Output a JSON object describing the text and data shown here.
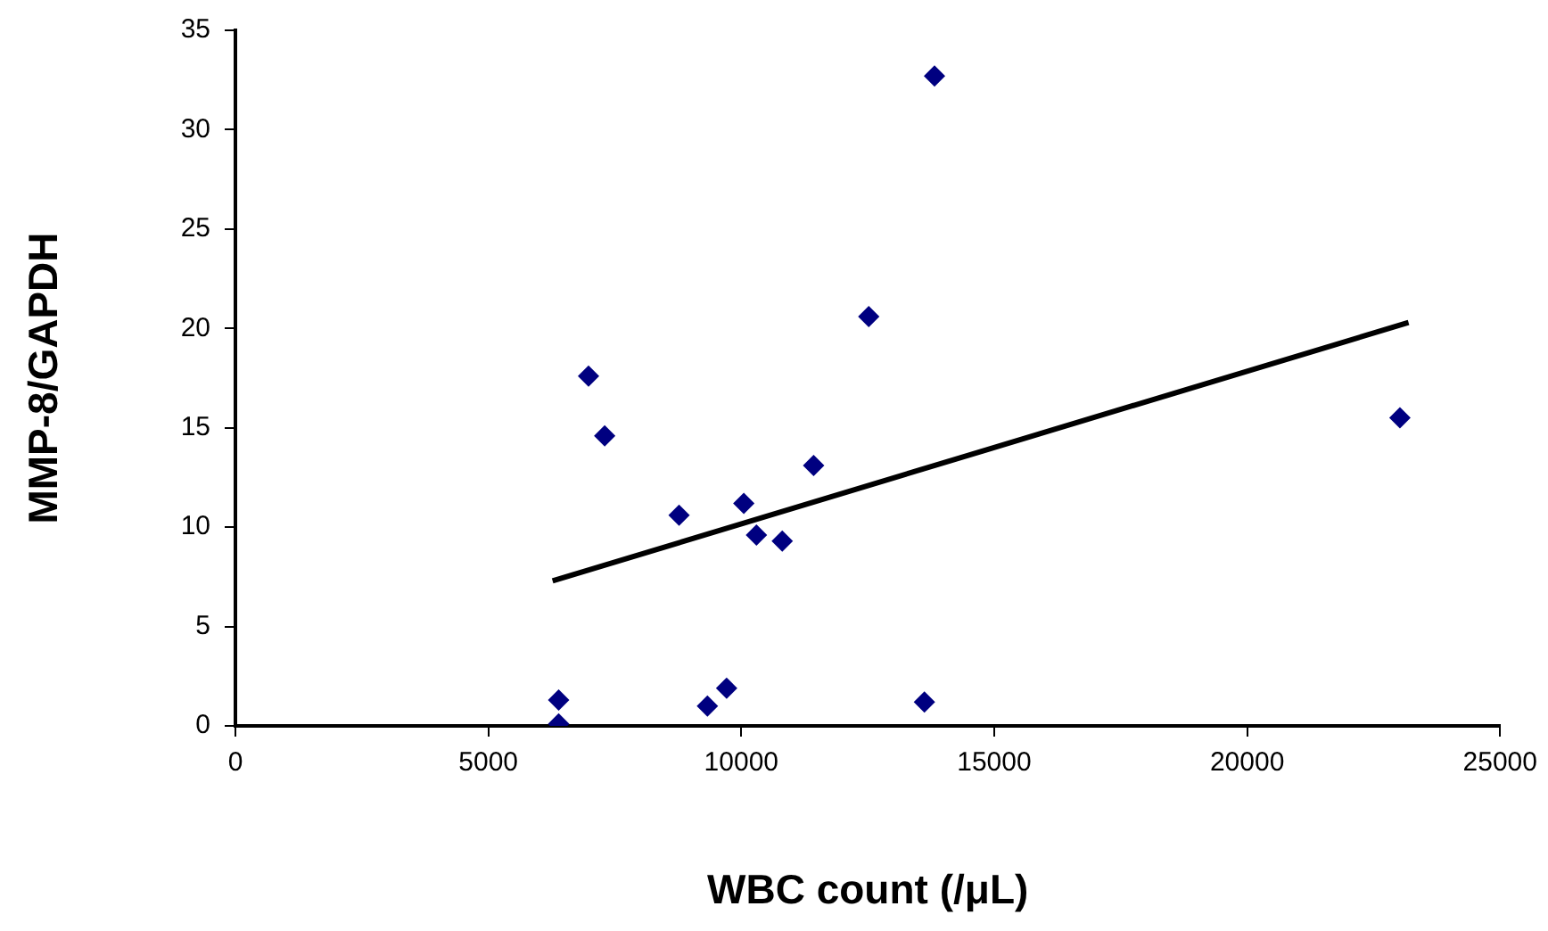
{
  "chart_data": {
    "type": "scatter",
    "xlabel": "WBC count (/μL)",
    "ylabel": "MMP-8/GAPDH",
    "marker": "diamond",
    "legend": false,
    "xlim": [
      0,
      25000
    ],
    "xticks": [
      0,
      5000,
      10000,
      15000,
      20000,
      25000
    ],
    "ylim": [
      0,
      35
    ],
    "yticks": [
      0,
      5,
      10,
      15,
      20,
      25,
      30,
      35
    ],
    "series": [
      {
        "color": "#000080",
        "x": [
          6390,
          6390,
          6980,
          7300,
          8770,
          10050,
          9330,
          9710,
          10300,
          10810,
          11430,
          12520,
          13820,
          13620,
          23020
        ],
        "values": [
          1.3,
          0.1,
          17.6,
          14.6,
          10.6,
          11.2,
          1.0,
          1.9,
          9.6,
          9.3,
          13.1,
          20.6,
          32.7,
          1.2,
          15.5
        ]
      },
      {
        "type": "line",
        "color": "#000000",
        "marker": "none",
        "x": [
          6270,
          23190
        ],
        "values": [
          7.3,
          20.3
        ]
      }
    ]
  }
}
